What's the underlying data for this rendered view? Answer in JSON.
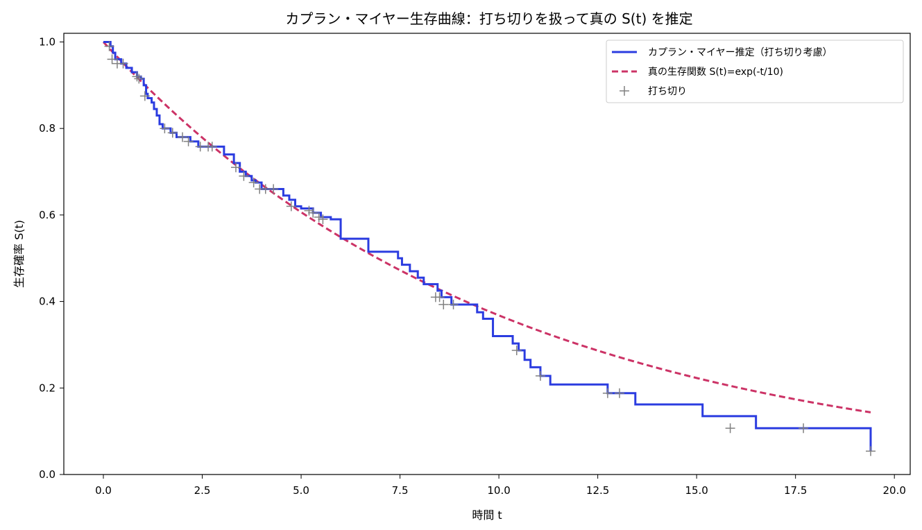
{
  "chart_data": {
    "type": "line",
    "title": "カプラン・マイヤー生存曲線：打ち切りを扱って真の S(t) を推定",
    "xlabel": "時間 t",
    "ylabel": "生存確率 S(t)",
    "xlim": [
      -1.0,
      20.4
    ],
    "ylim": [
      0.0,
      1.02
    ],
    "xticks": [
      0.0,
      2.5,
      5.0,
      7.5,
      10.0,
      12.5,
      15.0,
      17.5,
      20.0
    ],
    "xtick_labels": [
      "0.0",
      "2.5",
      "5.0",
      "7.5",
      "10.0",
      "12.5",
      "15.0",
      "17.5",
      "20.0"
    ],
    "yticks": [
      0.0,
      0.2,
      0.4,
      0.6,
      0.8,
      1.0
    ],
    "ytick_labels": [
      "0.0",
      "0.2",
      "0.4",
      "0.6",
      "0.8",
      "1.0"
    ],
    "grid": false,
    "legend_position": "top-right",
    "series": [
      {
        "name": "カプラン・マイヤー推定（打ち切り考慮）",
        "kind": "step",
        "color": "#2b3ce0",
        "x": [
          0.0,
          0.18,
          0.24,
          0.3,
          0.45,
          0.58,
          0.72,
          0.85,
          0.95,
          1.02,
          1.08,
          1.12,
          1.22,
          1.28,
          1.35,
          1.42,
          1.5,
          1.7,
          1.85,
          2.2,
          2.4,
          2.6,
          2.9,
          3.05,
          3.3,
          3.45,
          3.6,
          3.75,
          3.85,
          4.0,
          4.55,
          4.7,
          4.85,
          5.0,
          5.3,
          5.5,
          5.75,
          6.0,
          6.25,
          6.7,
          7.4,
          7.45,
          7.55,
          7.75,
          7.95,
          8.1,
          8.45,
          8.55,
          8.8,
          9.25,
          9.45,
          9.6,
          9.85,
          10.2,
          10.35,
          10.5,
          10.65,
          10.8,
          11.05,
          11.3,
          12.6,
          12.75,
          13.45,
          14.0,
          15.05,
          15.15,
          16.5,
          18.15,
          19.4
        ],
        "y": [
          1.0,
          0.99,
          0.975,
          0.96,
          0.95,
          0.94,
          0.93,
          0.92,
          0.915,
          0.9,
          0.88,
          0.87,
          0.86,
          0.845,
          0.83,
          0.81,
          0.8,
          0.79,
          0.78,
          0.77,
          0.758,
          0.758,
          0.758,
          0.74,
          0.72,
          0.7,
          0.69,
          0.68,
          0.675,
          0.66,
          0.645,
          0.635,
          0.62,
          0.615,
          0.605,
          0.595,
          0.59,
          0.545,
          0.545,
          0.515,
          0.515,
          0.5,
          0.485,
          0.47,
          0.455,
          0.44,
          0.425,
          0.41,
          0.393,
          0.393,
          0.375,
          0.36,
          0.32,
          0.32,
          0.303,
          0.287,
          0.265,
          0.248,
          0.228,
          0.208,
          0.208,
          0.188,
          0.162,
          0.162,
          0.162,
          0.135,
          0.107,
          0.107,
          0.054
        ]
      },
      {
        "name": "真の生存関数 S(t)=exp(-t/10)",
        "kind": "dashed",
        "color": "#cc3366",
        "function": "exp(-t/10)",
        "x_range": [
          0.0,
          19.4
        ]
      },
      {
        "name": "打ち切り",
        "kind": "marker",
        "marker": "+",
        "color": "#808080",
        "x": [
          0.15,
          0.22,
          0.35,
          0.5,
          0.85,
          0.9,
          1.05,
          1.55,
          1.75,
          2.0,
          2.15,
          2.45,
          2.65,
          2.75,
          3.35,
          3.55,
          3.8,
          3.95,
          4.1,
          4.3,
          4.75,
          5.2,
          5.3,
          5.45,
          5.55,
          8.4,
          8.5,
          8.6,
          8.85,
          10.45,
          11.05,
          12.75,
          13.05,
          15.85,
          17.7,
          19.4
        ],
        "y": [
          0.99,
          0.96,
          0.95,
          0.95,
          0.92,
          0.915,
          0.875,
          0.8,
          0.79,
          0.78,
          0.77,
          0.758,
          0.758,
          0.758,
          0.71,
          0.69,
          0.675,
          0.66,
          0.66,
          0.66,
          0.62,
          0.61,
          0.605,
          0.595,
          0.59,
          0.41,
          0.41,
          0.393,
          0.393,
          0.287,
          0.228,
          0.188,
          0.188,
          0.107,
          0.107,
          0.054
        ]
      }
    ]
  }
}
